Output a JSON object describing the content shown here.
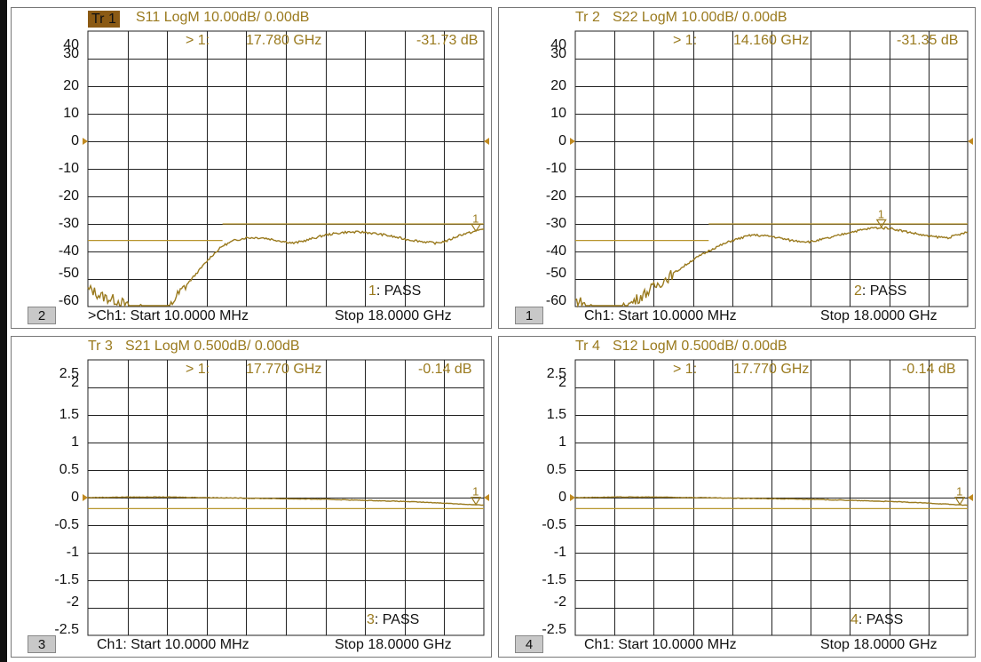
{
  "colors": {
    "trace": "#9a7a1e",
    "grid": "#222222",
    "limit": "#b8962e",
    "badge_bg": "#c8c8c8"
  },
  "panes": [
    {
      "badge": "2",
      "title_tr": "Tr 1",
      "title_rest": "S11 LogM 10.00dB/  0.00dB",
      "marker_label": "> 1:",
      "marker_freq": "17.780  GHz",
      "marker_value": "-31.73 dB",
      "pass_num": "1",
      "pass_text": ": PASS",
      "footer_start": ">Ch1:  Start   10.0000 MHz",
      "footer_stop": "Stop  18.0000 GHz",
      "y_labels": [
        "40",
        "30",
        "20",
        "10",
        "0",
        "-10",
        "-20",
        "-30",
        "-40",
        "-50",
        "-60"
      ],
      "marker_num": "1",
      "trace_points": [
        [
          0.01,
          -54
        ],
        [
          0.03,
          -56
        ],
        [
          0.05,
          -57
        ],
        [
          0.08,
          -58
        ],
        [
          0.1,
          -60
        ],
        [
          0.13,
          -61
        ],
        [
          0.15,
          -62
        ],
        [
          0.18,
          -63
        ],
        [
          0.2,
          -62
        ],
        [
          0.22,
          -57
        ],
        [
          0.25,
          -52
        ],
        [
          0.28,
          -47
        ],
        [
          0.31,
          -42
        ],
        [
          0.34,
          -38
        ],
        [
          0.37,
          -36
        ],
        [
          0.4,
          -35
        ],
        [
          0.44,
          -35
        ],
        [
          0.48,
          -36
        ],
        [
          0.52,
          -37
        ],
        [
          0.55,
          -36
        ],
        [
          0.6,
          -34
        ],
        [
          0.65,
          -33
        ],
        [
          0.7,
          -33
        ],
        [
          0.75,
          -34
        ],
        [
          0.8,
          -35.5
        ],
        [
          0.85,
          -36.5
        ],
        [
          0.88,
          -37
        ],
        [
          0.91,
          -36
        ],
        [
          0.94,
          -34
        ],
        [
          0.97,
          -33
        ],
        [
          1.0,
          -31.7
        ]
      ],
      "limit": {
        "low_value": -36,
        "low_end": 0.34,
        "high_value": -30,
        "high_start": 0.34
      },
      "marker_x": 0.98
    },
    {
      "badge": "1",
      "title_tr": "Tr 2",
      "title_rest": "S22 LogM 10.00dB/  0.00dB",
      "marker_label": "> 1:",
      "marker_freq": "14.160  GHz",
      "marker_value": "-31.35 dB",
      "pass_num": "2",
      "pass_text": ": PASS",
      "footer_start": "Ch1:  Start   10.0000 MHz",
      "footer_stop": "Stop  18.0000 GHz",
      "y_labels": [
        "40",
        "30",
        "20",
        "10",
        "0",
        "-10",
        "-20",
        "-30",
        "-40",
        "-50",
        "-60"
      ],
      "marker_num": "1",
      "trace_points": [
        [
          0.01,
          -58
        ],
        [
          0.03,
          -60
        ],
        [
          0.06,
          -61
        ],
        [
          0.09,
          -62
        ],
        [
          0.12,
          -61
        ],
        [
          0.15,
          -58
        ],
        [
          0.2,
          -53
        ],
        [
          0.25,
          -48
        ],
        [
          0.3,
          -43
        ],
        [
          0.35,
          -39
        ],
        [
          0.4,
          -36
        ],
        [
          0.45,
          -34
        ],
        [
          0.5,
          -34.5
        ],
        [
          0.55,
          -36
        ],
        [
          0.6,
          -36.5
        ],
        [
          0.65,
          -35
        ],
        [
          0.7,
          -33
        ],
        [
          0.76,
          -31.4
        ],
        [
          0.8,
          -31.5
        ],
        [
          0.85,
          -33
        ],
        [
          0.9,
          -34.5
        ],
        [
          0.95,
          -35
        ],
        [
          1.0,
          -33
        ]
      ],
      "limit": {
        "low_value": -36,
        "low_end": 0.34,
        "high_value": -30,
        "high_start": 0.34
      },
      "marker_x": 0.78
    },
    {
      "badge": "3",
      "title_tr": "Tr 3",
      "title_rest": "S21 LogM 0.500dB/  0.00dB",
      "marker_label": "> 1:",
      "marker_freq": "17.770  GHz",
      "marker_value": "-0.14 dB",
      "pass_num": "3",
      "pass_text": ": PASS",
      "footer_start": "Ch1:  Start   10.0000 MHz",
      "footer_stop": "Stop  18.0000 GHz",
      "y_labels": [
        "2.5",
        "2",
        "1.5",
        "1",
        "0.5",
        "0",
        "-0.5",
        "-1",
        "-1.5",
        "-2",
        "-2.5"
      ],
      "marker_num": "1",
      "trace_points": [
        [
          0.0,
          0.0
        ],
        [
          0.1,
          0.01
        ],
        [
          0.2,
          0.01
        ],
        [
          0.3,
          0.0
        ],
        [
          0.4,
          -0.01
        ],
        [
          0.5,
          -0.02
        ],
        [
          0.6,
          -0.03
        ],
        [
          0.7,
          -0.05
        ],
        [
          0.8,
          -0.07
        ],
        [
          0.9,
          -0.1
        ],
        [
          1.0,
          -0.14
        ]
      ],
      "limit": {
        "low_value": -0.2,
        "low_end": 1.0,
        "high_value": null,
        "high_start": null
      },
      "marker_x": 0.98
    },
    {
      "badge": "4",
      "title_tr": "Tr 4",
      "title_rest": "S12 LogM 0.500dB/  0.00dB",
      "marker_label": "> 1:",
      "marker_freq": "17.770  GHz",
      "marker_value": "-0.14 dB",
      "pass_num": "4",
      "pass_text": ": PASS",
      "footer_start": "Ch1:  Start   10.0000 MHz",
      "footer_stop": "Stop  18.0000 GHz",
      "y_labels": [
        "2.5",
        "2",
        "1.5",
        "1",
        "0.5",
        "0",
        "-0.5",
        "-1",
        "-1.5",
        "-2",
        "-2.5"
      ],
      "marker_num": "1",
      "trace_points": [
        [
          0.0,
          0.0
        ],
        [
          0.1,
          0.01
        ],
        [
          0.2,
          0.01
        ],
        [
          0.3,
          0.0
        ],
        [
          0.4,
          -0.01
        ],
        [
          0.5,
          -0.02
        ],
        [
          0.6,
          -0.03
        ],
        [
          0.7,
          -0.05
        ],
        [
          0.8,
          -0.07
        ],
        [
          0.9,
          -0.1
        ],
        [
          1.0,
          -0.14
        ]
      ],
      "limit": {
        "low_value": -0.2,
        "low_end": 1.0,
        "high_value": null,
        "high_start": null
      },
      "marker_x": 0.98
    }
  ]
}
